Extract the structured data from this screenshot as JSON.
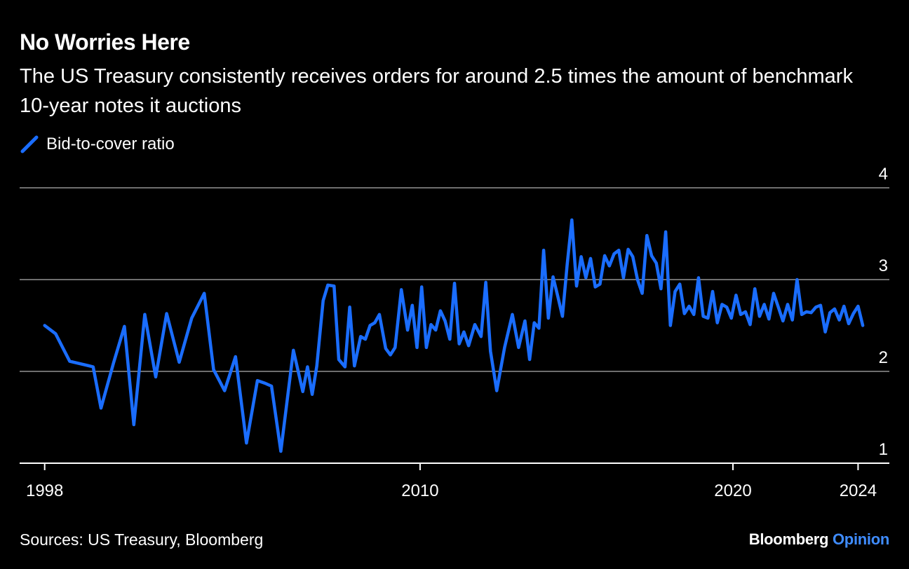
{
  "title": "No Worries Here",
  "subtitle": "The US Treasury consistently receives orders for around 2.5 times the amount of benchmark 10-year notes it auctions",
  "legend_label": "Bid-to-cover ratio",
  "source": "Sources: US Treasury, Bloomberg",
  "brand": {
    "name": "Bloomberg",
    "suffix": "Opinion"
  },
  "colors": {
    "background": "#000000",
    "line": "#1a6dff",
    "grid": "#6e6e6e",
    "brand_accent": "#3f8cff"
  },
  "chart_data": {
    "type": "line",
    "title": "No Worries Here",
    "xlabel": "",
    "ylabel": "",
    "ylim": [
      1,
      4
    ],
    "xlim": [
      1997.2,
      2025.0
    ],
    "yticks": [
      1,
      2,
      3,
      4
    ],
    "xticks": [
      1998,
      2010,
      2020,
      2024
    ],
    "grid": true,
    "legend": "top-left",
    "series": [
      {
        "name": "Bid-to-cover ratio",
        "points": [
          [
            1998.0,
            2.5
          ],
          [
            1998.35,
            2.41
          ],
          [
            1998.8,
            2.11
          ],
          [
            1999.3,
            2.07
          ],
          [
            1999.55,
            2.05
          ],
          [
            1999.8,
            1.6
          ],
          [
            2000.2,
            2.09
          ],
          [
            2000.55,
            2.49
          ],
          [
            2000.85,
            1.42
          ],
          [
            2001.2,
            2.62
          ],
          [
            2001.55,
            1.94
          ],
          [
            2001.9,
            2.63
          ],
          [
            2002.3,
            2.1
          ],
          [
            2002.7,
            2.58
          ],
          [
            2003.1,
            2.85
          ],
          [
            2003.4,
            2.02
          ],
          [
            2003.75,
            1.79
          ],
          [
            2004.1,
            2.16
          ],
          [
            2004.45,
            1.22
          ],
          [
            2004.8,
            1.9
          ],
          [
            2005.05,
            1.87
          ],
          [
            2005.25,
            1.84
          ],
          [
            2005.55,
            1.13
          ],
          [
            2005.95,
            2.23
          ],
          [
            2006.25,
            1.78
          ],
          [
            2006.4,
            2.05
          ],
          [
            2006.55,
            1.75
          ],
          [
            2006.7,
            2.06
          ],
          [
            2006.9,
            2.77
          ],
          [
            2007.05,
            2.94
          ],
          [
            2007.25,
            2.93
          ],
          [
            2007.4,
            2.13
          ],
          [
            2007.6,
            2.05
          ],
          [
            2007.75,
            2.7
          ],
          [
            2007.9,
            2.06
          ],
          [
            2008.1,
            2.38
          ],
          [
            2008.25,
            2.35
          ],
          [
            2008.4,
            2.5
          ],
          [
            2008.55,
            2.53
          ],
          [
            2008.7,
            2.62
          ],
          [
            2008.9,
            2.25
          ],
          [
            2009.05,
            2.18
          ],
          [
            2009.2,
            2.26
          ],
          [
            2009.4,
            2.89
          ],
          [
            2009.6,
            2.45
          ],
          [
            2009.75,
            2.72
          ],
          [
            2009.9,
            2.26
          ],
          [
            2010.05,
            2.92
          ],
          [
            2010.2,
            2.26
          ],
          [
            2010.35,
            2.51
          ],
          [
            2010.5,
            2.45
          ],
          [
            2010.65,
            2.66
          ],
          [
            2010.8,
            2.55
          ],
          [
            2010.95,
            2.35
          ],
          [
            2011.1,
            2.96
          ],
          [
            2011.25,
            2.3
          ],
          [
            2011.4,
            2.43
          ],
          [
            2011.55,
            2.28
          ],
          [
            2011.75,
            2.51
          ],
          [
            2011.95,
            2.38
          ],
          [
            2012.1,
            2.97
          ],
          [
            2012.25,
            2.22
          ],
          [
            2012.45,
            1.79
          ],
          [
            2012.7,
            2.26
          ],
          [
            2012.95,
            2.62
          ],
          [
            2013.15,
            2.26
          ],
          [
            2013.35,
            2.55
          ],
          [
            2013.5,
            2.13
          ],
          [
            2013.65,
            2.53
          ],
          [
            2013.8,
            2.47
          ],
          [
            2013.95,
            3.32
          ],
          [
            2014.1,
            2.58
          ],
          [
            2014.25,
            3.03
          ],
          [
            2014.4,
            2.82
          ],
          [
            2014.55,
            2.6
          ],
          [
            2014.7,
            3.16
          ],
          [
            2014.85,
            3.65
          ],
          [
            2015.0,
            2.93
          ],
          [
            2015.15,
            3.25
          ],
          [
            2015.3,
            3.02
          ],
          [
            2015.45,
            3.23
          ],
          [
            2015.6,
            2.92
          ],
          [
            2015.75,
            2.95
          ],
          [
            2015.9,
            3.26
          ],
          [
            2016.05,
            3.15
          ],
          [
            2016.2,
            3.28
          ],
          [
            2016.35,
            3.32
          ],
          [
            2016.5,
            3.02
          ],
          [
            2016.65,
            3.33
          ],
          [
            2016.8,
            3.25
          ],
          [
            2016.95,
            3.0
          ],
          [
            2017.1,
            2.85
          ],
          [
            2017.25,
            3.48
          ],
          [
            2017.4,
            3.26
          ],
          [
            2017.55,
            3.18
          ],
          [
            2017.7,
            2.9
          ],
          [
            2017.85,
            3.52
          ],
          [
            2018.0,
            2.5
          ],
          [
            2018.15,
            2.87
          ],
          [
            2018.3,
            2.95
          ],
          [
            2018.45,
            2.63
          ],
          [
            2018.6,
            2.71
          ],
          [
            2018.75,
            2.62
          ],
          [
            2018.9,
            3.02
          ],
          [
            2019.05,
            2.6
          ],
          [
            2019.2,
            2.58
          ],
          [
            2019.35,
            2.87
          ],
          [
            2019.5,
            2.53
          ],
          [
            2019.65,
            2.73
          ],
          [
            2019.8,
            2.7
          ],
          [
            2019.95,
            2.58
          ],
          [
            2020.1,
            2.83
          ],
          [
            2020.25,
            2.62
          ],
          [
            2020.4,
            2.65
          ],
          [
            2020.55,
            2.51
          ],
          [
            2020.7,
            2.9
          ],
          [
            2020.85,
            2.6
          ],
          [
            2021.0,
            2.73
          ],
          [
            2021.15,
            2.57
          ],
          [
            2021.3,
            2.85
          ],
          [
            2021.45,
            2.7
          ],
          [
            2021.6,
            2.55
          ],
          [
            2021.75,
            2.73
          ],
          [
            2021.9,
            2.56
          ],
          [
            2022.05,
            3.0
          ],
          [
            2022.2,
            2.62
          ],
          [
            2022.35,
            2.65
          ],
          [
            2022.5,
            2.64
          ],
          [
            2022.65,
            2.7
          ],
          [
            2022.8,
            2.72
          ],
          [
            2022.95,
            2.43
          ],
          [
            2023.1,
            2.64
          ],
          [
            2023.25,
            2.68
          ],
          [
            2023.4,
            2.56
          ],
          [
            2023.55,
            2.71
          ],
          [
            2023.7,
            2.52
          ],
          [
            2023.85,
            2.63
          ],
          [
            2024.0,
            2.71
          ],
          [
            2024.15,
            2.5
          ]
        ]
      }
    ]
  }
}
